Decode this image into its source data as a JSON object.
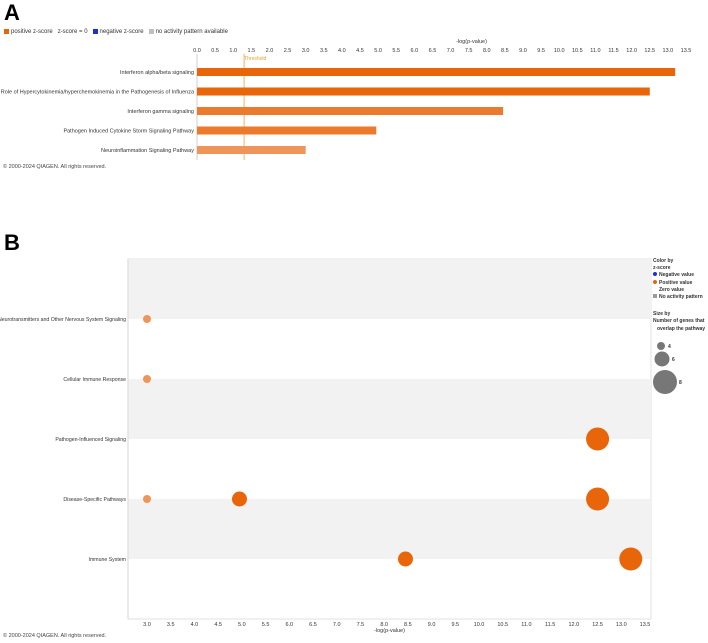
{
  "panels": {
    "a_label": "A",
    "b_label": "B"
  },
  "legend_a": {
    "positive": "positive z-score",
    "zero": "z-score = 0",
    "negative": "negative z-score",
    "no_activity": "no activity pattern available"
  },
  "copyright_a": "© 2000-2024 QIAGEN. All rights reserved.",
  "copyright_b": "© 2000-2024 QIAGEN. All rights reserved.",
  "legend_b": {
    "color_by_title": "Color by",
    "color_by_sub": "z-score",
    "negative": "Negative value",
    "positive": "Positive value",
    "zero": "Zero value",
    "no_activity": "No activity pattern",
    "size_title": "Size by",
    "size_sub1": "Number of genes that",
    "size_sub2": "overlap the pathway",
    "sizes": [
      "4",
      "6",
      "8"
    ]
  },
  "colors": {
    "positive_dark": "#e8650a",
    "positive_mid": "#ec7a2c",
    "positive_light": "#f0955a",
    "negative": "#1a2fd6",
    "zero": "#ffffff",
    "no_activity": "#bfbfbf",
    "threshold": "#f0a030",
    "bubble_gray": "#777777"
  },
  "chart_data": [
    {
      "type": "bar",
      "orientation": "horizontal",
      "xlabel": "-log(p-value)",
      "xlim": [
        0,
        13.5
      ],
      "xticks": [
        "0.0",
        "0.5",
        "1.0",
        "1.5",
        "2.0",
        "2.5",
        "3.0",
        "3.5",
        "4.0",
        "4.5",
        "5.0",
        "5.5",
        "6.0",
        "6.5",
        "7.0",
        "7.5",
        "8.0",
        "8.5",
        "9.0",
        "9.5",
        "10.0",
        "10.5",
        "11.0",
        "11.5",
        "12.0",
        "12.5",
        "13.0",
        "13.5"
      ],
      "threshold": {
        "label": "Threshold",
        "value": 1.3
      },
      "categories": [
        "Interferon alpha/beta signaling",
        "Role of Hypercytokinemia/hyperchemokinemia in the Pathogenesis of Influenza",
        "Interferon gamma signaling",
        "Pathogen Induced Cytokine Storm Signaling Pathway",
        "Neuroinflammation Signaling Pathway"
      ],
      "values": [
        13.2,
        12.5,
        8.45,
        4.95,
        3.0
      ],
      "color_keys": [
        "positive_dark",
        "positive_dark",
        "positive_mid",
        "positive_mid",
        "positive_light"
      ]
    },
    {
      "type": "scatter",
      "xlabel": "-log(p-value)",
      "xlim": [
        2.75,
        13.5
      ],
      "xticks": [
        "3.0",
        "3.5",
        "4.0",
        "4.5",
        "5.0",
        "5.5",
        "6.0",
        "6.5",
        "7.0",
        "7.5",
        "8.0",
        "8.5",
        "9.0",
        "9.5",
        "10.0",
        "10.5",
        "11.0",
        "11.5",
        "12.0",
        "12.5",
        "13.0",
        "13.5"
      ],
      "categories": [
        "Neurotransmitters and Other Nervous System Signaling",
        "Cellular Immune Response",
        "Pathogen-Influenced Signaling",
        "Disease-Specific Pathways",
        "Immune System"
      ],
      "points": [
        {
          "category": 0,
          "x": 3.0,
          "genes": 3
        },
        {
          "category": 1,
          "x": 3.0,
          "genes": 3
        },
        {
          "category": 2,
          "x": 12.5,
          "genes": 8
        },
        {
          "category": 3,
          "x": 3.0,
          "genes": 3
        },
        {
          "category": 3,
          "x": 4.95,
          "genes": 5
        },
        {
          "category": 3,
          "x": 12.5,
          "genes": 8
        },
        {
          "category": 4,
          "x": 8.45,
          "genes": 5
        },
        {
          "category": 4,
          "x": 13.2,
          "genes": 8
        }
      ]
    }
  ]
}
